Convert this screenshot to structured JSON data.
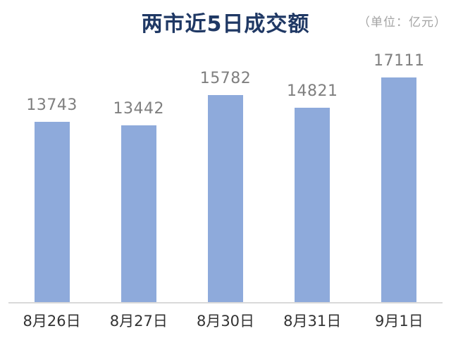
{
  "header": {
    "title": "两市近5日成交额",
    "unit_label": "（单位：亿元）"
  },
  "chart_data": {
    "type": "bar",
    "title": "两市近5日成交额",
    "unit": "亿元",
    "categories": [
      "8月26日",
      "8月27日",
      "8月30日",
      "8月31日",
      "9月1日"
    ],
    "values": [
      13743,
      13442,
      15782,
      14821,
      17111
    ],
    "xlabel": "",
    "ylabel": "",
    "ylim": [
      0,
      17500
    ],
    "grid": false,
    "legend": false,
    "data_labels_visible": true,
    "colors": {
      "bar_fill": "#8eaadb",
      "title_text": "#1f3864",
      "unit_text": "#a3a3a3",
      "value_label_text": "#7f7f7f",
      "axis_label_text": "#333333",
      "baseline": "#d9d9d9",
      "background": "#ffffff"
    }
  }
}
